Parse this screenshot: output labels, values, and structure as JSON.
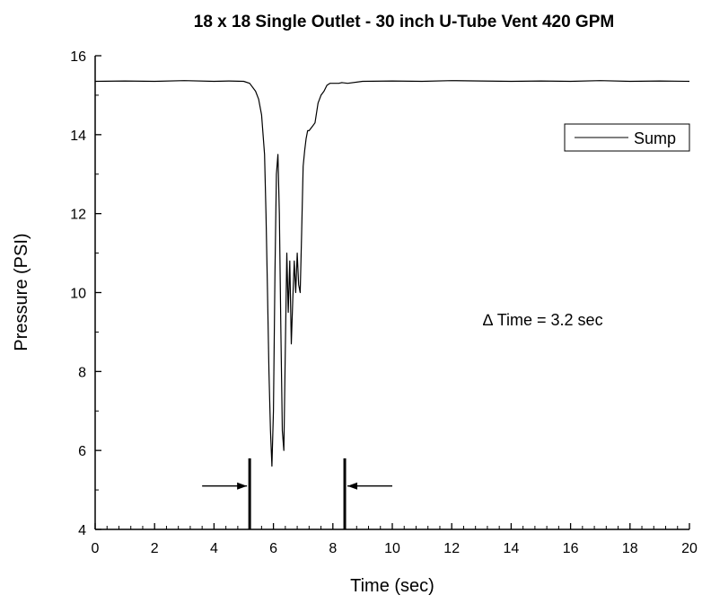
{
  "chart_data": {
    "type": "line",
    "title": "18 x 18 Single Outlet - 30 inch U-Tube Vent 420 GPM",
    "xlabel": "Time (sec)",
    "ylabel": "Pressure (PSI)",
    "xlim": [
      0,
      20
    ],
    "ylim": [
      4,
      16
    ],
    "xticks": [
      0,
      2,
      4,
      6,
      8,
      10,
      12,
      14,
      16,
      18,
      20
    ],
    "yticks": [
      4,
      6,
      8,
      10,
      12,
      14,
      16
    ],
    "grid": false,
    "legend": {
      "position": "top-right",
      "entries": [
        "Sump"
      ]
    },
    "series": [
      {
        "name": "Sump",
        "color": "#000000",
        "x": [
          0,
          1,
          2,
          3,
          4,
          4.5,
          5.0,
          5.2,
          5.4,
          5.5,
          5.6,
          5.7,
          5.75,
          5.8,
          5.85,
          5.9,
          5.95,
          6.0,
          6.05,
          6.1,
          6.15,
          6.2,
          6.25,
          6.3,
          6.35,
          6.4,
          6.45,
          6.5,
          6.55,
          6.6,
          6.65,
          6.7,
          6.75,
          6.8,
          6.85,
          6.9,
          6.95,
          7.0,
          7.05,
          7.1,
          7.15,
          7.2,
          7.3,
          7.4,
          7.5,
          7.6,
          7.7,
          7.8,
          7.9,
          8.0,
          8.1,
          8.2,
          8.3,
          8.5,
          9,
          10,
          11,
          12,
          13,
          14,
          15,
          16,
          17,
          18,
          19,
          20
        ],
        "y": [
          15.35,
          15.36,
          15.35,
          15.37,
          15.35,
          15.36,
          15.35,
          15.3,
          15.1,
          14.9,
          14.5,
          13.5,
          12.0,
          10.0,
          8.0,
          6.5,
          5.6,
          7.0,
          10.5,
          13.0,
          13.5,
          12.0,
          9.0,
          6.5,
          6.0,
          8.5,
          11.0,
          9.5,
          10.8,
          8.7,
          9.8,
          10.8,
          10.0,
          11.0,
          10.2,
          10.0,
          11.5,
          13.2,
          13.6,
          13.9,
          14.1,
          14.1,
          14.2,
          14.3,
          14.8,
          15.0,
          15.1,
          15.25,
          15.3,
          15.3,
          15.3,
          15.3,
          15.32,
          15.3,
          15.35,
          15.36,
          15.35,
          15.37,
          15.36,
          15.35,
          15.36,
          15.35,
          15.37,
          15.35,
          15.36,
          15.35
        ]
      }
    ],
    "markers": [
      {
        "x": 5.2,
        "y_from": 4,
        "y_to": 5.8,
        "arrow_from_x": 3.6,
        "arrow_y": 5.1,
        "arrow_direction": "right"
      },
      {
        "x": 8.4,
        "y_from": 4,
        "y_to": 5.8,
        "arrow_from_x": 10.0,
        "arrow_y": 5.1,
        "arrow_direction": "left"
      }
    ],
    "annotations": [
      {
        "text": "∆ Time = 3.2 sec",
        "x": 13.3,
        "y": 9.6
      }
    ]
  }
}
